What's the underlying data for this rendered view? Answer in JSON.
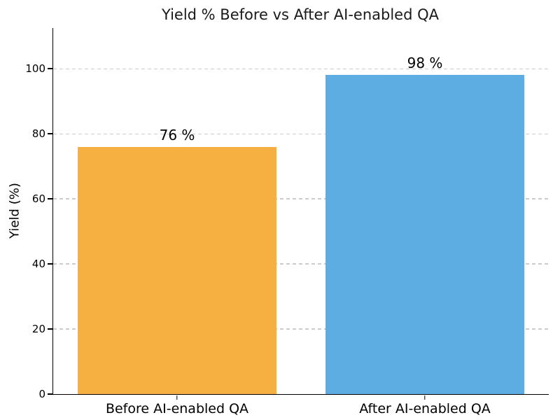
{
  "figure": {
    "background": "#ffffff"
  },
  "chart_data": {
    "type": "bar",
    "title": "Yield % Before vs After AI-enabled QA",
    "xlabel": "",
    "ylabel": "Yield (%)",
    "categories": [
      "Before AI-enabled QA",
      "After AI-enabled QA"
    ],
    "values": [
      76,
      98
    ],
    "value_labels": [
      "76 %",
      "98 %"
    ],
    "bar_colors": [
      "#F5B041",
      "#5DADE2"
    ],
    "bar_width_fraction": 0.8,
    "ylim": [
      0,
      112.5
    ],
    "yticks": [
      0,
      20,
      40,
      60,
      80,
      100
    ],
    "grid": {
      "axis": "y",
      "style": "dashed",
      "color": "#cccccc"
    },
    "legend": "none",
    "spines": [
      "left",
      "bottom"
    ],
    "text_color": "#000000"
  }
}
